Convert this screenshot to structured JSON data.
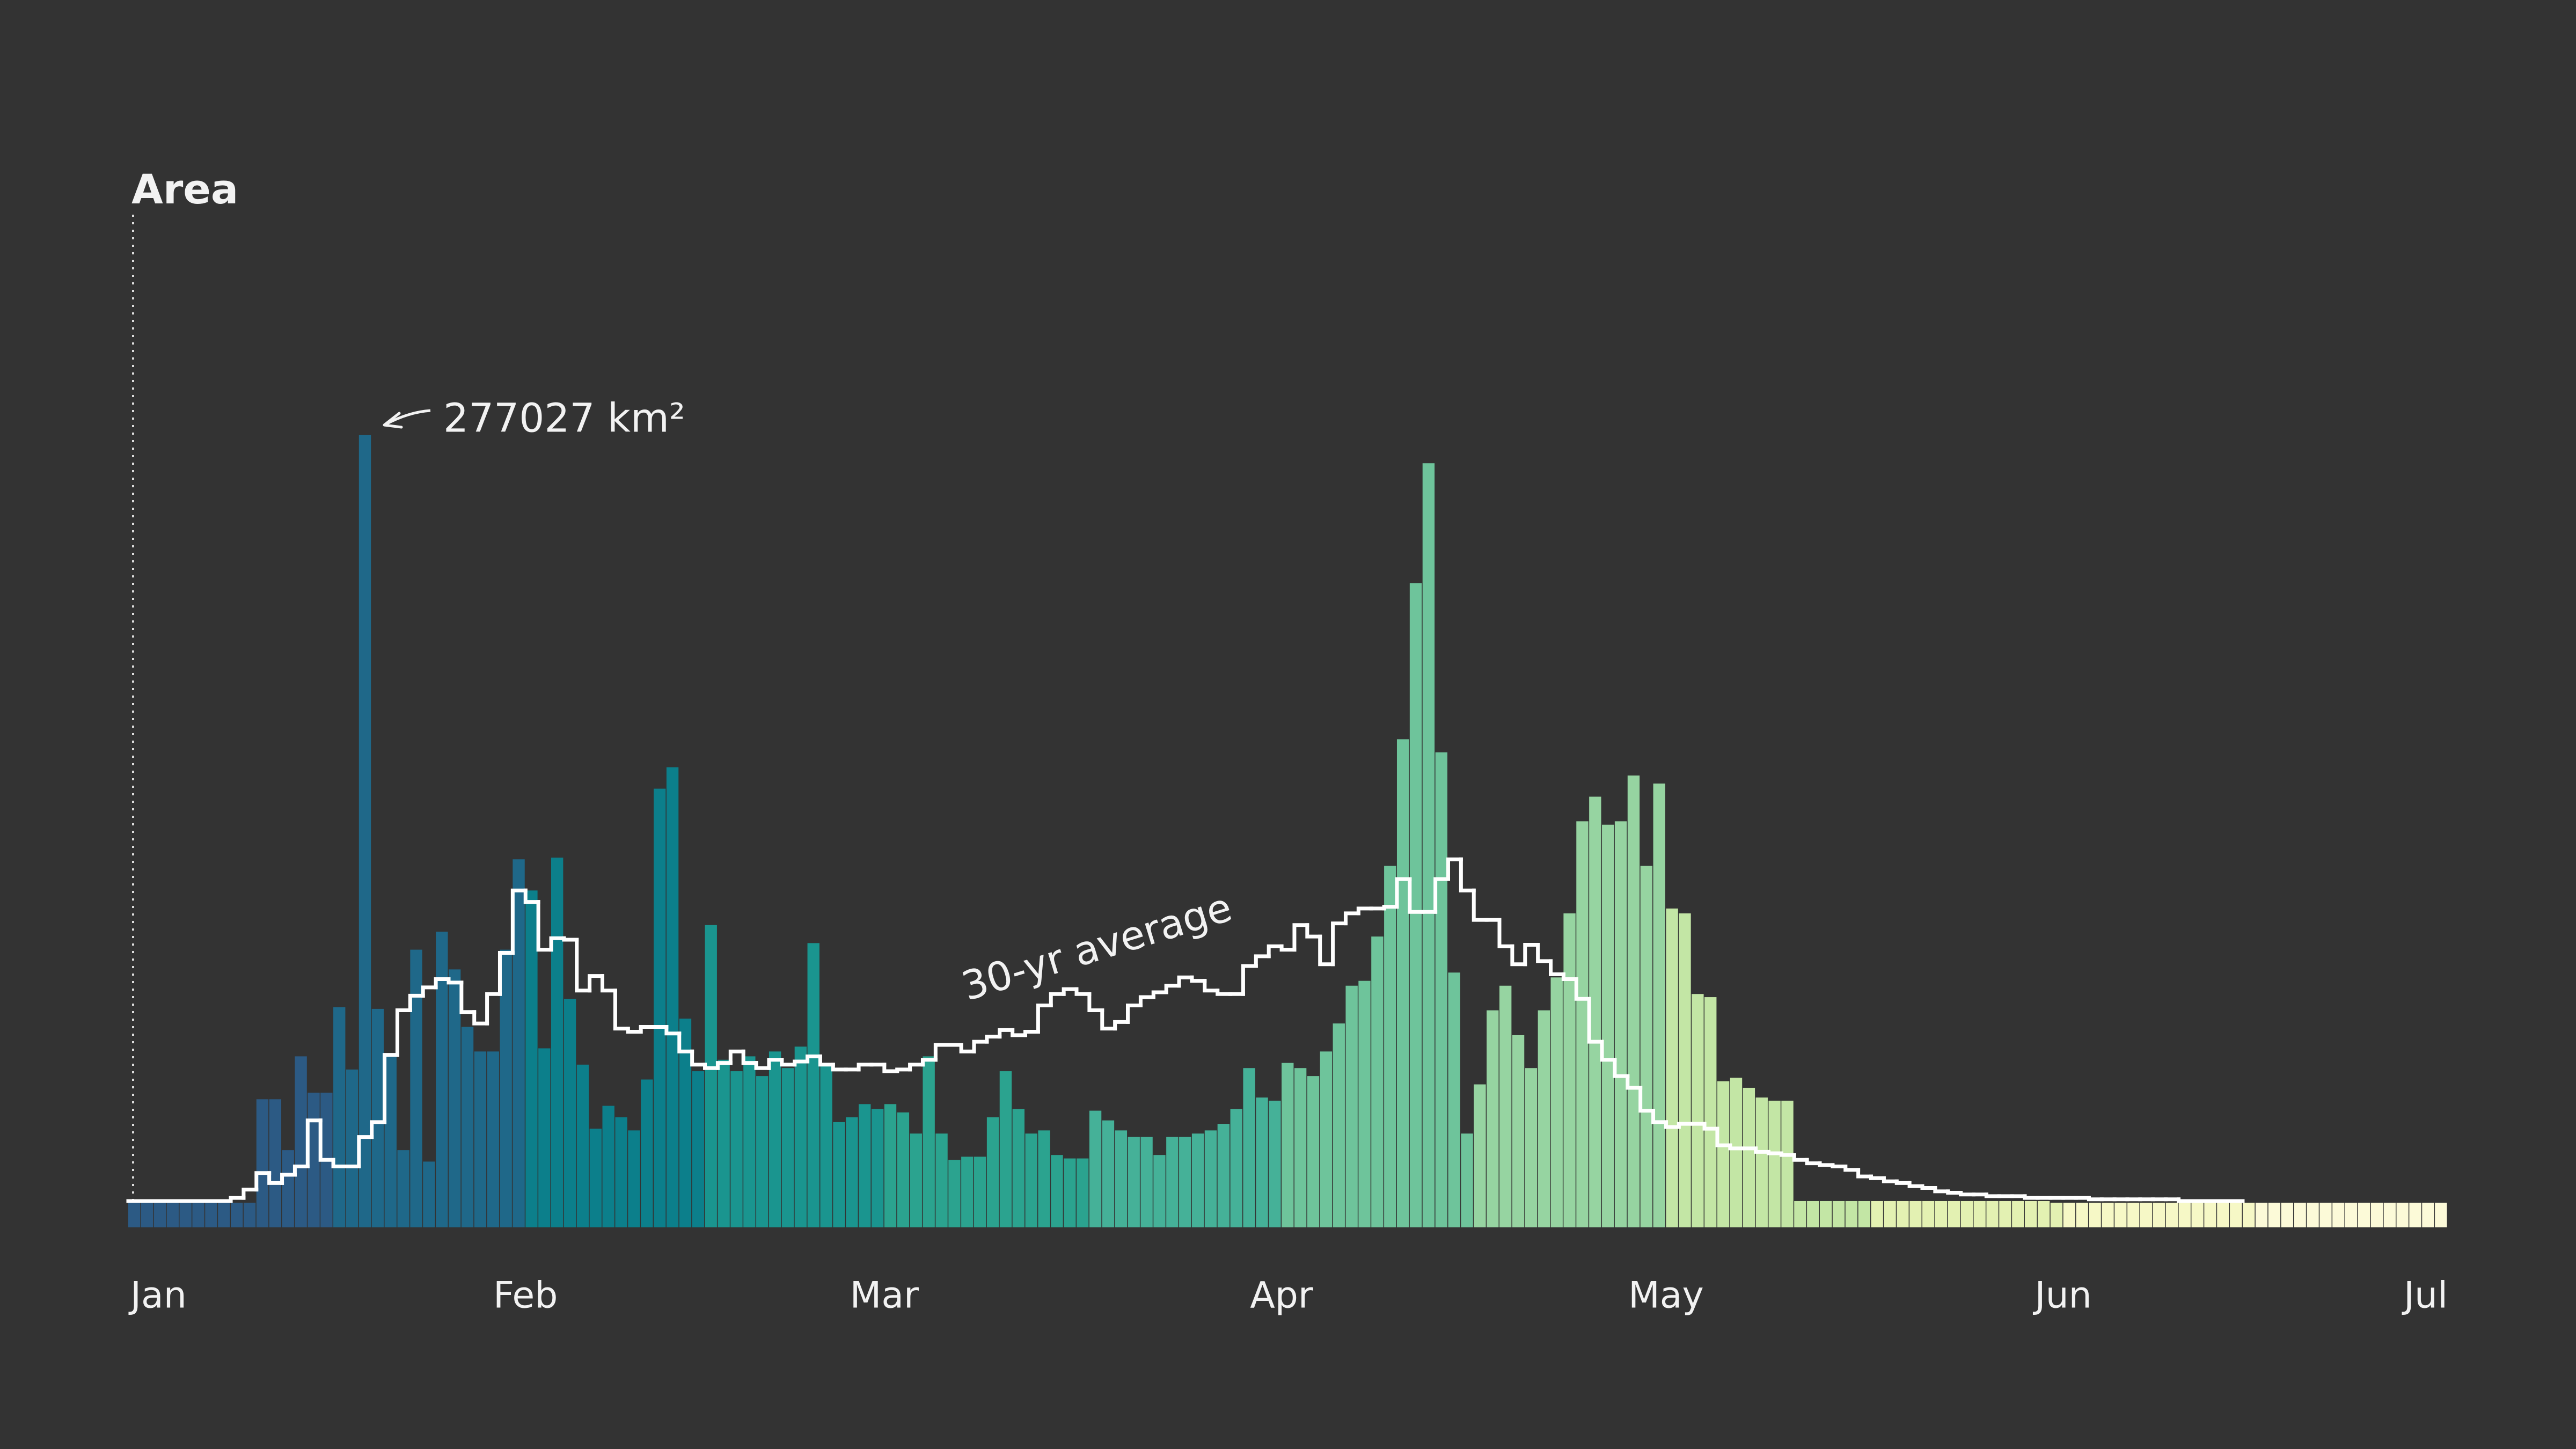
{
  "chart_data": {
    "type": "bar",
    "y_label": "Area",
    "annotation": "277027 km²",
    "xlim": [
      0,
      181
    ],
    "xticks": [
      {
        "value": 0,
        "label": "Jan"
      },
      {
        "value": 31,
        "label": "Feb"
      },
      {
        "value": 59,
        "label": "Mar"
      },
      {
        "value": 90,
        "label": "Apr"
      },
      {
        "value": 120,
        "label": "May"
      },
      {
        "value": 151,
        "label": "Jun"
      },
      {
        "value": 181,
        "label": "Jul"
      }
    ],
    "ylim": [
      0,
      350000
    ],
    "x": [
      0,
      1,
      2,
      3,
      4,
      5,
      6,
      7,
      8,
      9,
      10,
      11,
      12,
      13,
      14,
      15,
      16,
      17,
      18,
      19,
      20,
      21,
      22,
      23,
      24,
      25,
      26,
      27,
      28,
      29,
      30,
      31,
      32,
      33,
      34,
      35,
      36,
      37,
      38,
      39,
      40,
      41,
      42,
      43,
      44,
      45,
      46,
      47,
      48,
      49,
      50,
      51,
      52,
      53,
      54,
      55,
      56,
      57,
      58,
      59,
      60,
      61,
      62,
      63,
      64,
      65,
      66,
      67,
      68,
      69,
      70,
      71,
      72,
      73,
      74,
      75,
      76,
      77,
      78,
      79,
      80,
      81,
      82,
      83,
      84,
      85,
      86,
      87,
      88,
      89,
      90,
      91,
      92,
      93,
      94,
      95,
      96,
      97,
      98,
      99,
      100,
      101,
      102,
      103,
      104,
      105,
      106,
      107,
      108,
      109,
      110,
      111,
      112,
      113,
      114,
      115,
      116,
      117,
      118,
      119,
      120,
      121,
      122,
      123,
      124,
      125,
      126,
      127,
      128,
      129,
      130,
      131,
      132,
      133,
      134,
      135,
      136,
      137,
      138,
      139,
      140,
      141,
      142,
      143,
      144,
      145,
      146,
      147,
      148,
      149,
      150,
      151,
      152,
      153,
      154,
      155,
      156,
      157,
      158,
      159,
      160,
      161,
      162,
      163,
      164,
      165,
      166,
      167,
      168,
      169,
      170,
      171,
      172,
      173,
      174,
      175,
      176,
      177,
      178,
      179,
      180
    ],
    "bars": {
      "colors": [
        "#2c5a84",
        "#1f6889",
        "#0c7f8b",
        "#1a958f",
        "#2ba38f",
        "#45b198",
        "#6ec49b",
        "#96d4a1",
        "#c3e6a5",
        "#e3f1b2",
        "#f6f8c6",
        "#fcfad8"
      ],
      "values": [
        8600,
        8600,
        8600,
        8600,
        8600,
        8600,
        8600,
        8600,
        8600,
        8600,
        44800,
        44800,
        27000,
        59800,
        47100,
        47100,
        77000,
        55200,
        277027,
        76400,
        60300,
        27000,
        97100,
        23000,
        103400,
        90200,
        70100,
        61500,
        61500,
        97100,
        128700,
        117800,
        62600,
        129300,
        79900,
        56900,
        34500,
        42500,
        38500,
        33900,
        51700,
        153400,
        160900,
        73000,
        54600,
        105700,
        58600,
        54600,
        59800,
        52900,
        61500,
        55700,
        63200,
        99400,
        56900,
        36800,
        38500,
        43100,
        41400,
        43100,
        40200,
        32800,
        59800,
        32800,
        23600,
        24700,
        24700,
        38500,
        54600,
        41400,
        32800,
        33900,
        25300,
        24100,
        24100,
        40800,
        37400,
        33900,
        31600,
        31600,
        25300,
        31600,
        31600,
        32800,
        33900,
        36200,
        41400,
        55700,
        45400,
        44300,
        57500,
        55700,
        52900,
        61500,
        71300,
        84500,
        86200,
        101700,
        126400,
        170700,
        225300,
        267200,
        166100,
        89100,
        32800,
        50000,
        75900,
        84500,
        67200,
        55700,
        75900,
        87400,
        109800,
        142000,
        150600,
        140800,
        142000,
        158000,
        126400,
        155200,
        111500,
        109800,
        81600,
        80500,
        51100,
        52300,
        48800,
        45400,
        44300,
        44300,
        9200,
        9200,
        9200,
        9200,
        9200,
        9200,
        9200,
        9200,
        9200,
        9200,
        9200,
        9200,
        9200,
        9200,
        9200,
        9200,
        9200,
        9200,
        9200,
        9200,
        8600,
        8600,
        8600,
        8600,
        8600,
        8600,
        8600,
        8600,
        8600,
        8600,
        8600,
        8600,
        8600,
        8600,
        8600,
        8600,
        8600,
        8600,
        8600,
        8600,
        8600,
        8600,
        8600,
        8600,
        8600,
        8600,
        8600,
        8600,
        8600,
        8600,
        8600
      ]
    },
    "line": {
      "name": "30-yr average",
      "color": "#ffffff",
      "values": [
        9200,
        9200,
        9200,
        9200,
        9200,
        9200,
        9200,
        9200,
        10300,
        13200,
        19000,
        15500,
        18400,
        21300,
        37400,
        23600,
        21300,
        21300,
        31600,
        36800,
        60300,
        75900,
        81000,
        83900,
        86800,
        85600,
        75300,
        71300,
        81600,
        96000,
        117800,
        113800,
        97100,
        101100,
        100600,
        82800,
        87900,
        82800,
        69500,
        68400,
        70100,
        70100,
        67800,
        61500,
        56900,
        55700,
        57500,
        61500,
        57500,
        55700,
        58600,
        56900,
        58000,
        59800,
        56900,
        55200,
        55200,
        56900,
        56900,
        54600,
        55200,
        56900,
        58600,
        63800,
        63800,
        61500,
        64900,
        66700,
        69000,
        67200,
        68400,
        77600,
        81600,
        83300,
        81600,
        75900,
        69500,
        71800,
        77600,
        80500,
        82200,
        84500,
        87400,
        86200,
        82800,
        81600,
        81600,
        91400,
        94800,
        98300,
        97100,
        105700,
        101700,
        92000,
        106300,
        109800,
        111500,
        111500,
        112100,
        121800,
        110300,
        110300,
        121800,
        128700,
        117800,
        107500,
        107500,
        98300,
        92000,
        98800,
        93100,
        88500,
        86800,
        79900,
        64900,
        58600,
        52900,
        48800,
        40800,
        36800,
        35100,
        36200,
        36200,
        34500,
        28700,
        27600,
        27600,
        26400,
        25900,
        25300,
        23600,
        22400,
        21800,
        21300,
        20100,
        17800,
        17200,
        16100,
        15500,
        14400,
        13800,
        12600,
        12100,
        11500,
        11500,
        10900,
        10900,
        10900,
        10300,
        10300,
        10300,
        10300,
        10300,
        9800,
        9800,
        9800,
        9800,
        9800,
        9800,
        9800,
        9200,
        9200,
        9200,
        9200,
        9200,
        null,
        null,
        null,
        null,
        null,
        null,
        null,
        null,
        null,
        null,
        null,
        null,
        null,
        null,
        null,
        null
      ]
    }
  }
}
